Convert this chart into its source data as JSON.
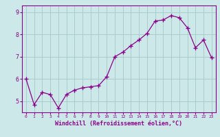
{
  "x": [
    0,
    1,
    2,
    3,
    4,
    5,
    6,
    7,
    8,
    9,
    10,
    11,
    12,
    13,
    14,
    15,
    16,
    17,
    18,
    19,
    20,
    21,
    22,
    23
  ],
  "y": [
    6.0,
    4.85,
    5.4,
    5.3,
    4.7,
    5.3,
    5.5,
    5.6,
    5.65,
    5.7,
    6.1,
    7.0,
    7.2,
    7.5,
    7.75,
    8.05,
    8.6,
    8.65,
    8.85,
    8.75,
    8.3,
    7.4,
    7.75,
    6.95
  ],
  "line_color": "#8B008B",
  "marker": "+",
  "bg_color": "#cce8e8",
  "grid_color": "#aacccc",
  "axis_color": "#8B008B",
  "tick_color": "#8B008B",
  "xlabel": "Windchill (Refroidissement éolien,°C)",
  "xlabel_color": "#8B008B",
  "ylim": [
    4.5,
    9.3
  ],
  "yticks": [
    5,
    6,
    7,
    8,
    9
  ],
  "ytick_labels": [
    "5",
    "6",
    "7",
    "8",
    "9"
  ]
}
